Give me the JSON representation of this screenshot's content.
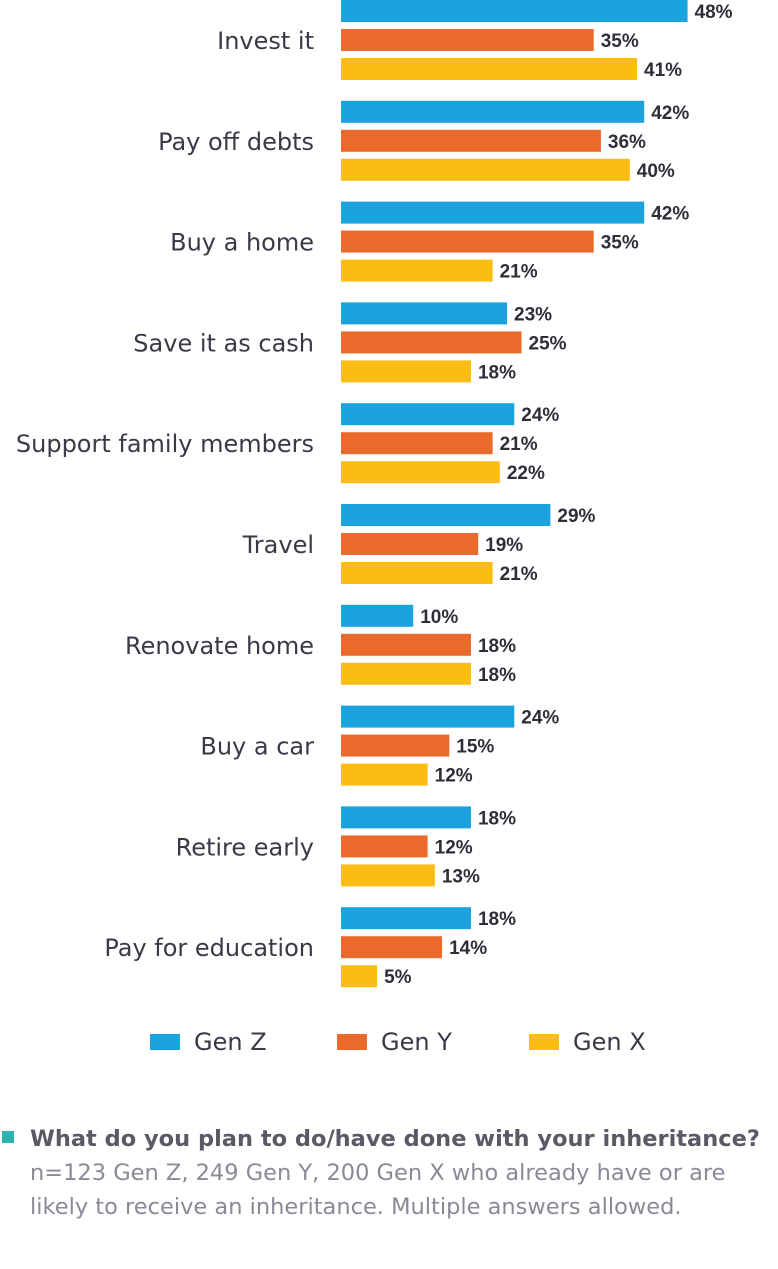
{
  "chart_data": {
    "type": "bar",
    "orientation": "horizontal",
    "categories": [
      "Invest it",
      "Pay off debts",
      "Buy a home",
      "Save it as cash",
      "Support family members",
      "Travel",
      "Renovate home",
      "Buy a car",
      "Retire early",
      "Pay for education"
    ],
    "series": [
      {
        "name": "Gen Z",
        "color": "#1aa3dd",
        "values": [
          48,
          42,
          42,
          23,
          24,
          29,
          10,
          24,
          18,
          18
        ]
      },
      {
        "name": "Gen Y",
        "color": "#e96a2a",
        "values": [
          35,
          36,
          35,
          25,
          21,
          19,
          18,
          15,
          12,
          14
        ]
      },
      {
        "name": "Gen X",
        "color": "#fbbc14",
        "values": [
          41,
          40,
          21,
          18,
          22,
          21,
          18,
          12,
          13,
          5
        ]
      }
    ],
    "value_suffix": "%",
    "legend_position": "bottom",
    "grid": false
  },
  "footnote": {
    "question": "What do you plan to do/have done with your inheritance?",
    "details": " n=123 Gen Z, 249 Gen Y, 200 Gen X who already have or are likely to receive an inheritance. Multiple answers allowed.",
    "marker_color": "#2bb5b0"
  }
}
